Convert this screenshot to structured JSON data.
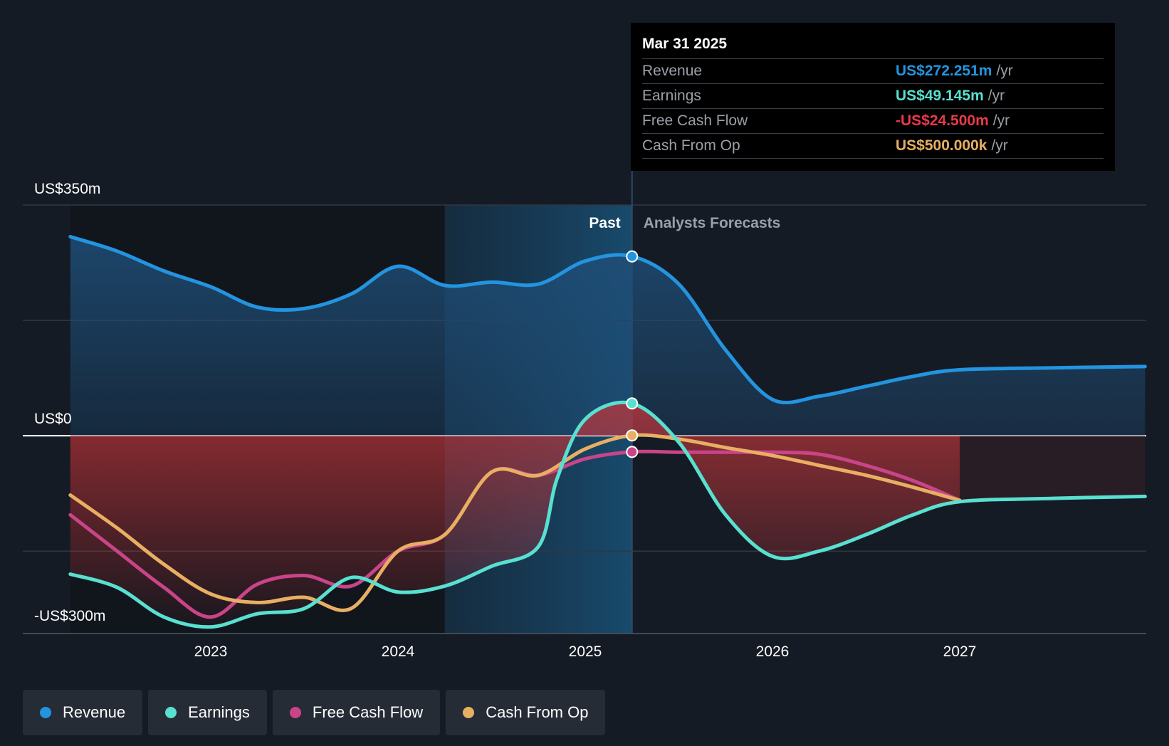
{
  "chart_data": {
    "type": "area",
    "y_axis": {
      "top_label": "US$350m",
      "zero_label": "US$0",
      "bottom_label": "-US$300m",
      "ylim": [
        -300,
        350
      ]
    },
    "x_axis": {
      "tick_labels": [
        "2023",
        "2024",
        "2025",
        "2026",
        "2027"
      ],
      "xlim": [
        2022.25,
        2027.99
      ]
    },
    "past_label": "Past",
    "forecast_label": "Analysts Forecasts",
    "divider_x": 2025.25,
    "highlight_start_x": 2024.25,
    "series": [
      {
        "name": "Revenue",
        "color": "#2394df",
        "points": [
          [
            2022.25,
            302
          ],
          [
            2022.5,
            280
          ],
          [
            2022.75,
            250
          ],
          [
            2023.0,
            226
          ],
          [
            2023.25,
            195
          ],
          [
            2023.5,
            193
          ],
          [
            2023.75,
            215
          ],
          [
            2024.0,
            257
          ],
          [
            2024.25,
            228
          ],
          [
            2024.5,
            233
          ],
          [
            2024.75,
            230
          ],
          [
            2025.0,
            265
          ],
          [
            2025.25,
            272
          ],
          [
            2025.5,
            230
          ],
          [
            2025.75,
            130
          ],
          [
            2026.0,
            55
          ],
          [
            2026.25,
            60
          ],
          [
            2026.5,
            75
          ],
          [
            2026.75,
            90
          ],
          [
            2027.0,
            100
          ],
          [
            2027.5,
            103
          ],
          [
            2027.99,
            105
          ]
        ]
      },
      {
        "name": "Earnings",
        "color": "#58e0d0",
        "points": [
          [
            2022.25,
            -210
          ],
          [
            2022.5,
            -230
          ],
          [
            2022.75,
            -275
          ],
          [
            2023.0,
            -290
          ],
          [
            2023.25,
            -270
          ],
          [
            2023.5,
            -262
          ],
          [
            2023.75,
            -215
          ],
          [
            2024.0,
            -237
          ],
          [
            2024.25,
            -228
          ],
          [
            2024.5,
            -198
          ],
          [
            2024.75,
            -168
          ],
          [
            2024.85,
            -65
          ],
          [
            2025.0,
            25
          ],
          [
            2025.25,
            49
          ],
          [
            2025.5,
            -10
          ],
          [
            2025.75,
            -120
          ],
          [
            2026.0,
            -183
          ],
          [
            2026.25,
            -175
          ],
          [
            2026.5,
            -150
          ],
          [
            2026.75,
            -120
          ],
          [
            2027.0,
            -100
          ],
          [
            2027.5,
            -95
          ],
          [
            2027.99,
            -92
          ]
        ]
      },
      {
        "name": "Free Cash Flow",
        "color": "#c94489",
        "points": [
          [
            2022.25,
            -120
          ],
          [
            2022.5,
            -175
          ],
          [
            2022.75,
            -230
          ],
          [
            2023.0,
            -275
          ],
          [
            2023.25,
            -225
          ],
          [
            2023.5,
            -212
          ],
          [
            2023.75,
            -228
          ],
          [
            2024.0,
            -175
          ],
          [
            2024.25,
            -150
          ],
          [
            2024.5,
            -55
          ],
          [
            2024.75,
            -60
          ],
          [
            2025.0,
            -35
          ],
          [
            2025.25,
            -24.5
          ],
          [
            2025.5,
            -25
          ],
          [
            2025.75,
            -25
          ],
          [
            2026.0,
            -25
          ],
          [
            2026.25,
            -28
          ],
          [
            2026.5,
            -45
          ],
          [
            2026.75,
            -68
          ],
          [
            2027.0,
            -98
          ]
        ]
      },
      {
        "name": "Cash From Op",
        "color": "#e8af63",
        "points": [
          [
            2022.25,
            -90
          ],
          [
            2022.5,
            -140
          ],
          [
            2022.75,
            -195
          ],
          [
            2023.0,
            -240
          ],
          [
            2023.25,
            -253
          ],
          [
            2023.5,
            -245
          ],
          [
            2023.75,
            -262
          ],
          [
            2024.0,
            -175
          ],
          [
            2024.25,
            -150
          ],
          [
            2024.5,
            -55
          ],
          [
            2024.75,
            -60
          ],
          [
            2025.0,
            -20
          ],
          [
            2025.25,
            0.5
          ],
          [
            2025.5,
            -5
          ],
          [
            2025.75,
            -18
          ],
          [
            2026.0,
            -30
          ],
          [
            2026.25,
            -45
          ],
          [
            2026.5,
            -60
          ],
          [
            2026.75,
            -78
          ],
          [
            2027.0,
            -98
          ]
        ]
      }
    ],
    "negative_fill_until": 2027.0
  },
  "tooltip": {
    "date": "Mar 31 2025",
    "rows": [
      {
        "label": "Revenue",
        "value": "US$272.251m",
        "unit": "/yr",
        "color": "#2394df"
      },
      {
        "label": "Earnings",
        "value": "US$49.145m",
        "unit": "/yr",
        "color": "#58e0d0"
      },
      {
        "label": "Free Cash Flow",
        "value": "-US$24.500m",
        "unit": "/yr",
        "color": "#e8394a"
      },
      {
        "label": "Cash From Op",
        "value": "US$500.000k",
        "unit": "/yr",
        "color": "#e8af63"
      }
    ]
  },
  "legend": [
    {
      "label": "Revenue",
      "color": "#2394df"
    },
    {
      "label": "Earnings",
      "color": "#58e0d0"
    },
    {
      "label": "Free Cash Flow",
      "color": "#c94489"
    },
    {
      "label": "Cash From Op",
      "color": "#e8af63"
    }
  ]
}
